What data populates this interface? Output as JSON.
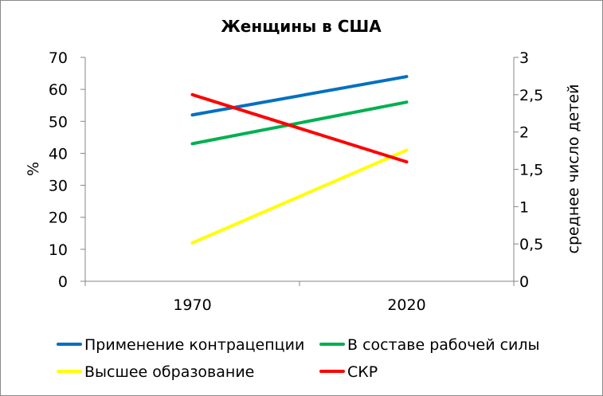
{
  "chart_data": {
    "type": "line",
    "title": "Женщины в США",
    "categories": [
      "1970",
      "2020"
    ],
    "y_left": {
      "label": "%",
      "min": 0,
      "max": 70,
      "step": 10,
      "ticks": [
        "0",
        "10",
        "20",
        "30",
        "40",
        "50",
        "60",
        "70"
      ]
    },
    "y_right": {
      "label": "среднее число детей",
      "min": 0,
      "max": 3,
      "step": 0.5,
      "ticks": [
        "0",
        "0,5",
        "1",
        "1,5",
        "2",
        "2,5",
        "3"
      ]
    },
    "grid": false,
    "legend_position": "bottom",
    "series": [
      {
        "name": "Применение контрацепции",
        "axis": "left",
        "color": "#0070C0",
        "values": [
          52,
          64
        ]
      },
      {
        "name": "В составе рабочей силы",
        "axis": "left",
        "color": "#00B050",
        "values": [
          43,
          56
        ]
      },
      {
        "name": "Высшее образование",
        "axis": "left",
        "color": "#FFFF00",
        "values": [
          12,
          41
        ]
      },
      {
        "name": "СКР",
        "axis": "right",
        "color": "#FF0000",
        "values": [
          2.5,
          1.6
        ]
      }
    ]
  }
}
